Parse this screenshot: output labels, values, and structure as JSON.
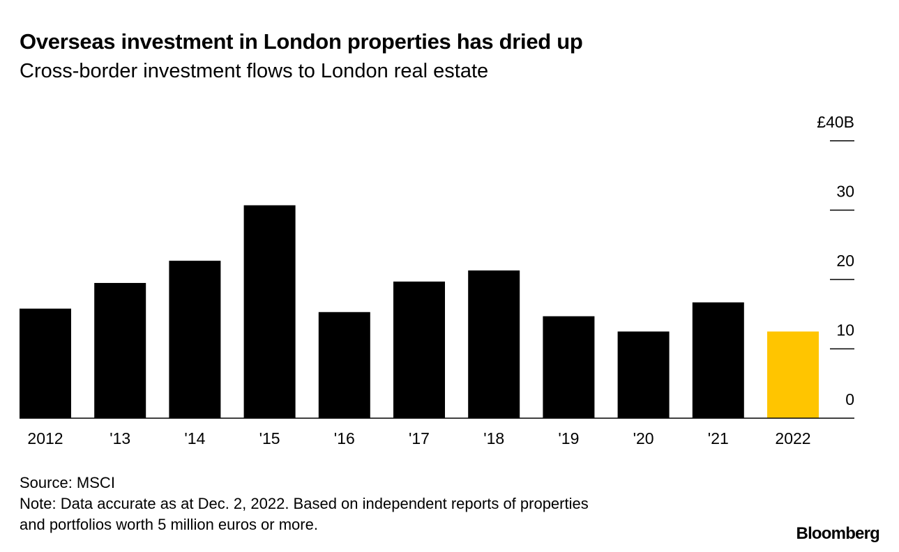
{
  "chart_data": {
    "type": "bar",
    "title": "Overseas investment in London properties has dried up",
    "subtitle": "Cross-border investment flows to London real estate",
    "categories": [
      "2012",
      "'13",
      "'14",
      "'15",
      "'16",
      "'17",
      "'18",
      "'19",
      "'20",
      "'21",
      "2022"
    ],
    "values": [
      15.8,
      19.5,
      22.7,
      30.7,
      15.3,
      19.7,
      21.3,
      14.7,
      12.5,
      16.7,
      12.5
    ],
    "ylim": [
      0,
      40
    ],
    "yticks": [
      0,
      10,
      20,
      30,
      40
    ],
    "ytick_labels": [
      "0",
      "10",
      "20",
      "30",
      "£40B"
    ],
    "xlabel": "",
    "ylabel": "",
    "grid": false,
    "colors": {
      "default": "#000000",
      "highlight": "#FFC500"
    },
    "highlight_index": 10
  },
  "source": "Source: MSCI",
  "note_line1": "Note: Data accurate as at Dec. 2, 2022. Based on independent reports of properties",
  "note_line2": "and portfolios worth 5 million euros or more.",
  "logo": "Bloomberg"
}
